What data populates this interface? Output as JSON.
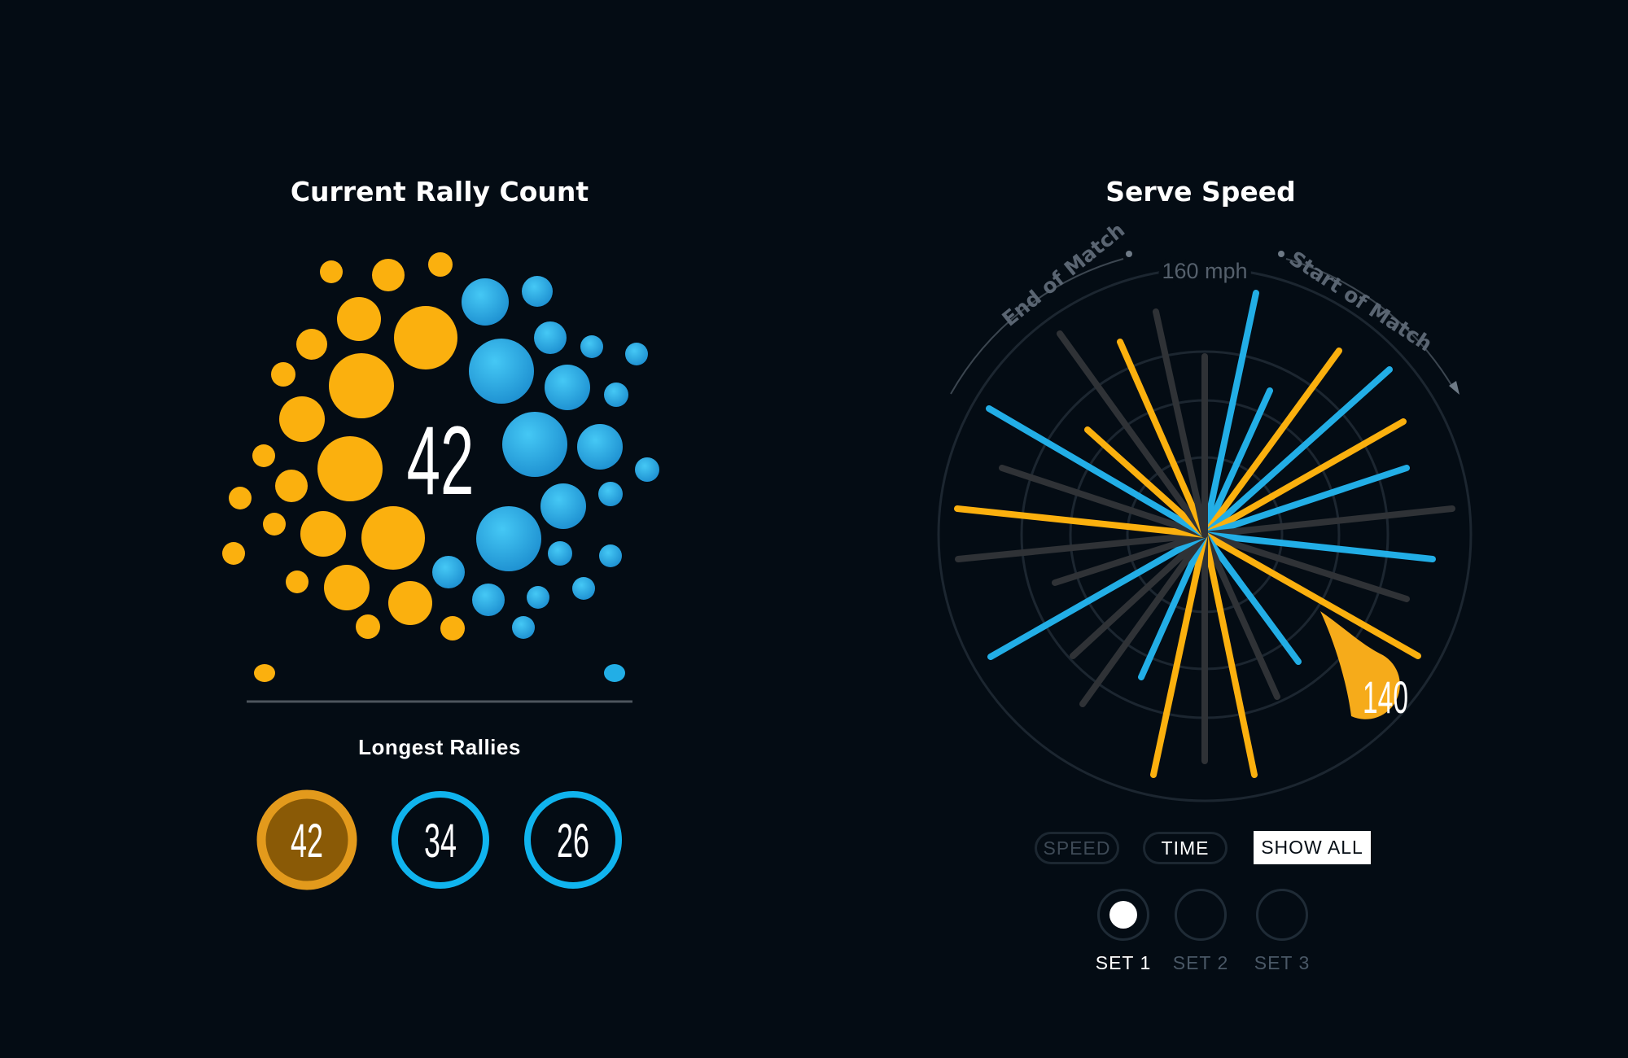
{
  "rally": {
    "title": "Current Rally Count",
    "count": "42",
    "longest_title": "Longest Rallies",
    "longest": [
      {
        "value": "42",
        "color": "#f4a71e"
      },
      {
        "value": "34",
        "color": "#10b4ee"
      },
      {
        "value": "26",
        "color": "#10b4ee"
      }
    ]
  },
  "serve": {
    "title": "Serve Speed",
    "max_label": "160 mph",
    "end_label": "End of Match",
    "start_label": "Start of Match",
    "highlight_value": "140",
    "buttons": {
      "speed": "SPEED",
      "time": "TIME",
      "show_all": "SHOW ALL"
    },
    "sets": [
      {
        "label": "SET 1",
        "selected": true
      },
      {
        "label": "SET 2",
        "selected": false
      },
      {
        "label": "SET 3",
        "selected": false
      }
    ]
  },
  "colors": {
    "background": "#040c14",
    "player1": "#fbb00e",
    "player2": "#22aee6",
    "neutral": "#2f3236",
    "grid": "#1c2630"
  }
}
